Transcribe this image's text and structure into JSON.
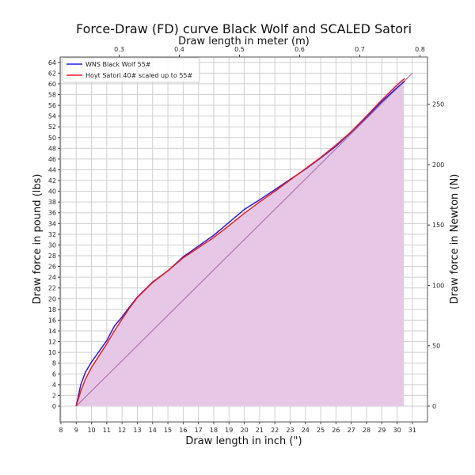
{
  "chart_data": {
    "type": "line",
    "title": "Force-Draw (FD) curve Black Wolf and SCALED Satori",
    "xlabel": "Draw length in inch (\")",
    "ylabel": "Draw force in pound (lbs)",
    "secondary_xlabel": "Draw length in meter (m)",
    "secondary_ylabel": "Draw force in Newton (N)",
    "xlim": [
      7.95,
      31.99
    ],
    "ylim": [
      -2.95,
      65.0
    ],
    "x_ticks": [
      8,
      9,
      10,
      11,
      12,
      13,
      14,
      15,
      16,
      17,
      18,
      19,
      20,
      21,
      22,
      23,
      24,
      25,
      26,
      27,
      28,
      29,
      30,
      31
    ],
    "y_ticks": [
      0,
      2,
      4,
      6,
      8,
      10,
      12,
      14,
      16,
      18,
      20,
      22,
      24,
      26,
      28,
      30,
      32,
      34,
      36,
      38,
      40,
      42,
      44,
      46,
      48,
      50,
      52,
      54,
      56,
      58,
      60,
      62,
      64
    ],
    "secondary_x_ticks": [
      0.3,
      0.4,
      0.5,
      0.6,
      0.7,
      0.8
    ],
    "secondary_y_ticks": [
      0,
      50,
      100,
      150,
      200,
      250
    ],
    "grid": true,
    "legend_position": "upper left",
    "series": [
      {
        "name": "WNS Black Wolf 55#",
        "color": "#1f1fe0",
        "x": [
          9,
          9.3,
          9.6,
          10,
          10.5,
          11,
          11.5,
          12,
          12.5,
          13,
          14,
          15,
          16,
          17,
          18,
          19,
          20,
          21,
          22,
          23,
          24,
          25,
          26,
          27,
          28,
          29,
          30,
          30.5
        ],
        "y": [
          0,
          4,
          6.3,
          8.2,
          10.2,
          12.2,
          14.9,
          16.6,
          18.5,
          20.3,
          23.1,
          25.2,
          27.8,
          29.8,
          31.8,
          34.2,
          36.6,
          38.4,
          40.3,
          42.2,
          44.1,
          46.2,
          48.4,
          51.0,
          53.8,
          56.7,
          59.3,
          60.5
        ]
      },
      {
        "name": "Hoyt Satori 40# scaled up to 55#",
        "color": "#ee1c1c",
        "x": [
          9,
          9.3,
          9.6,
          10,
          10.5,
          11,
          11.5,
          12,
          12.5,
          13,
          14,
          15,
          16,
          17,
          18,
          19,
          20,
          21,
          22,
          23,
          24,
          25,
          26,
          27,
          28,
          29,
          30,
          30.5
        ],
        "y": [
          0,
          2.8,
          5.0,
          7.2,
          9.4,
          11.6,
          14.0,
          16.2,
          18.3,
          20.2,
          23.0,
          25.2,
          27.6,
          29.5,
          31.4,
          33.6,
          35.9,
          38.0,
          40.0,
          42.1,
          44.2,
          46.3,
          48.6,
          51.1,
          54.0,
          57.0,
          59.8,
          61.0
        ]
      }
    ],
    "reference_line": {
      "x": [
        9,
        31
      ],
      "y": [
        0,
        62
      ],
      "color": "#b070b0"
    },
    "fill": {
      "color": "#e6c8e6",
      "x_end": 30.45
    }
  }
}
